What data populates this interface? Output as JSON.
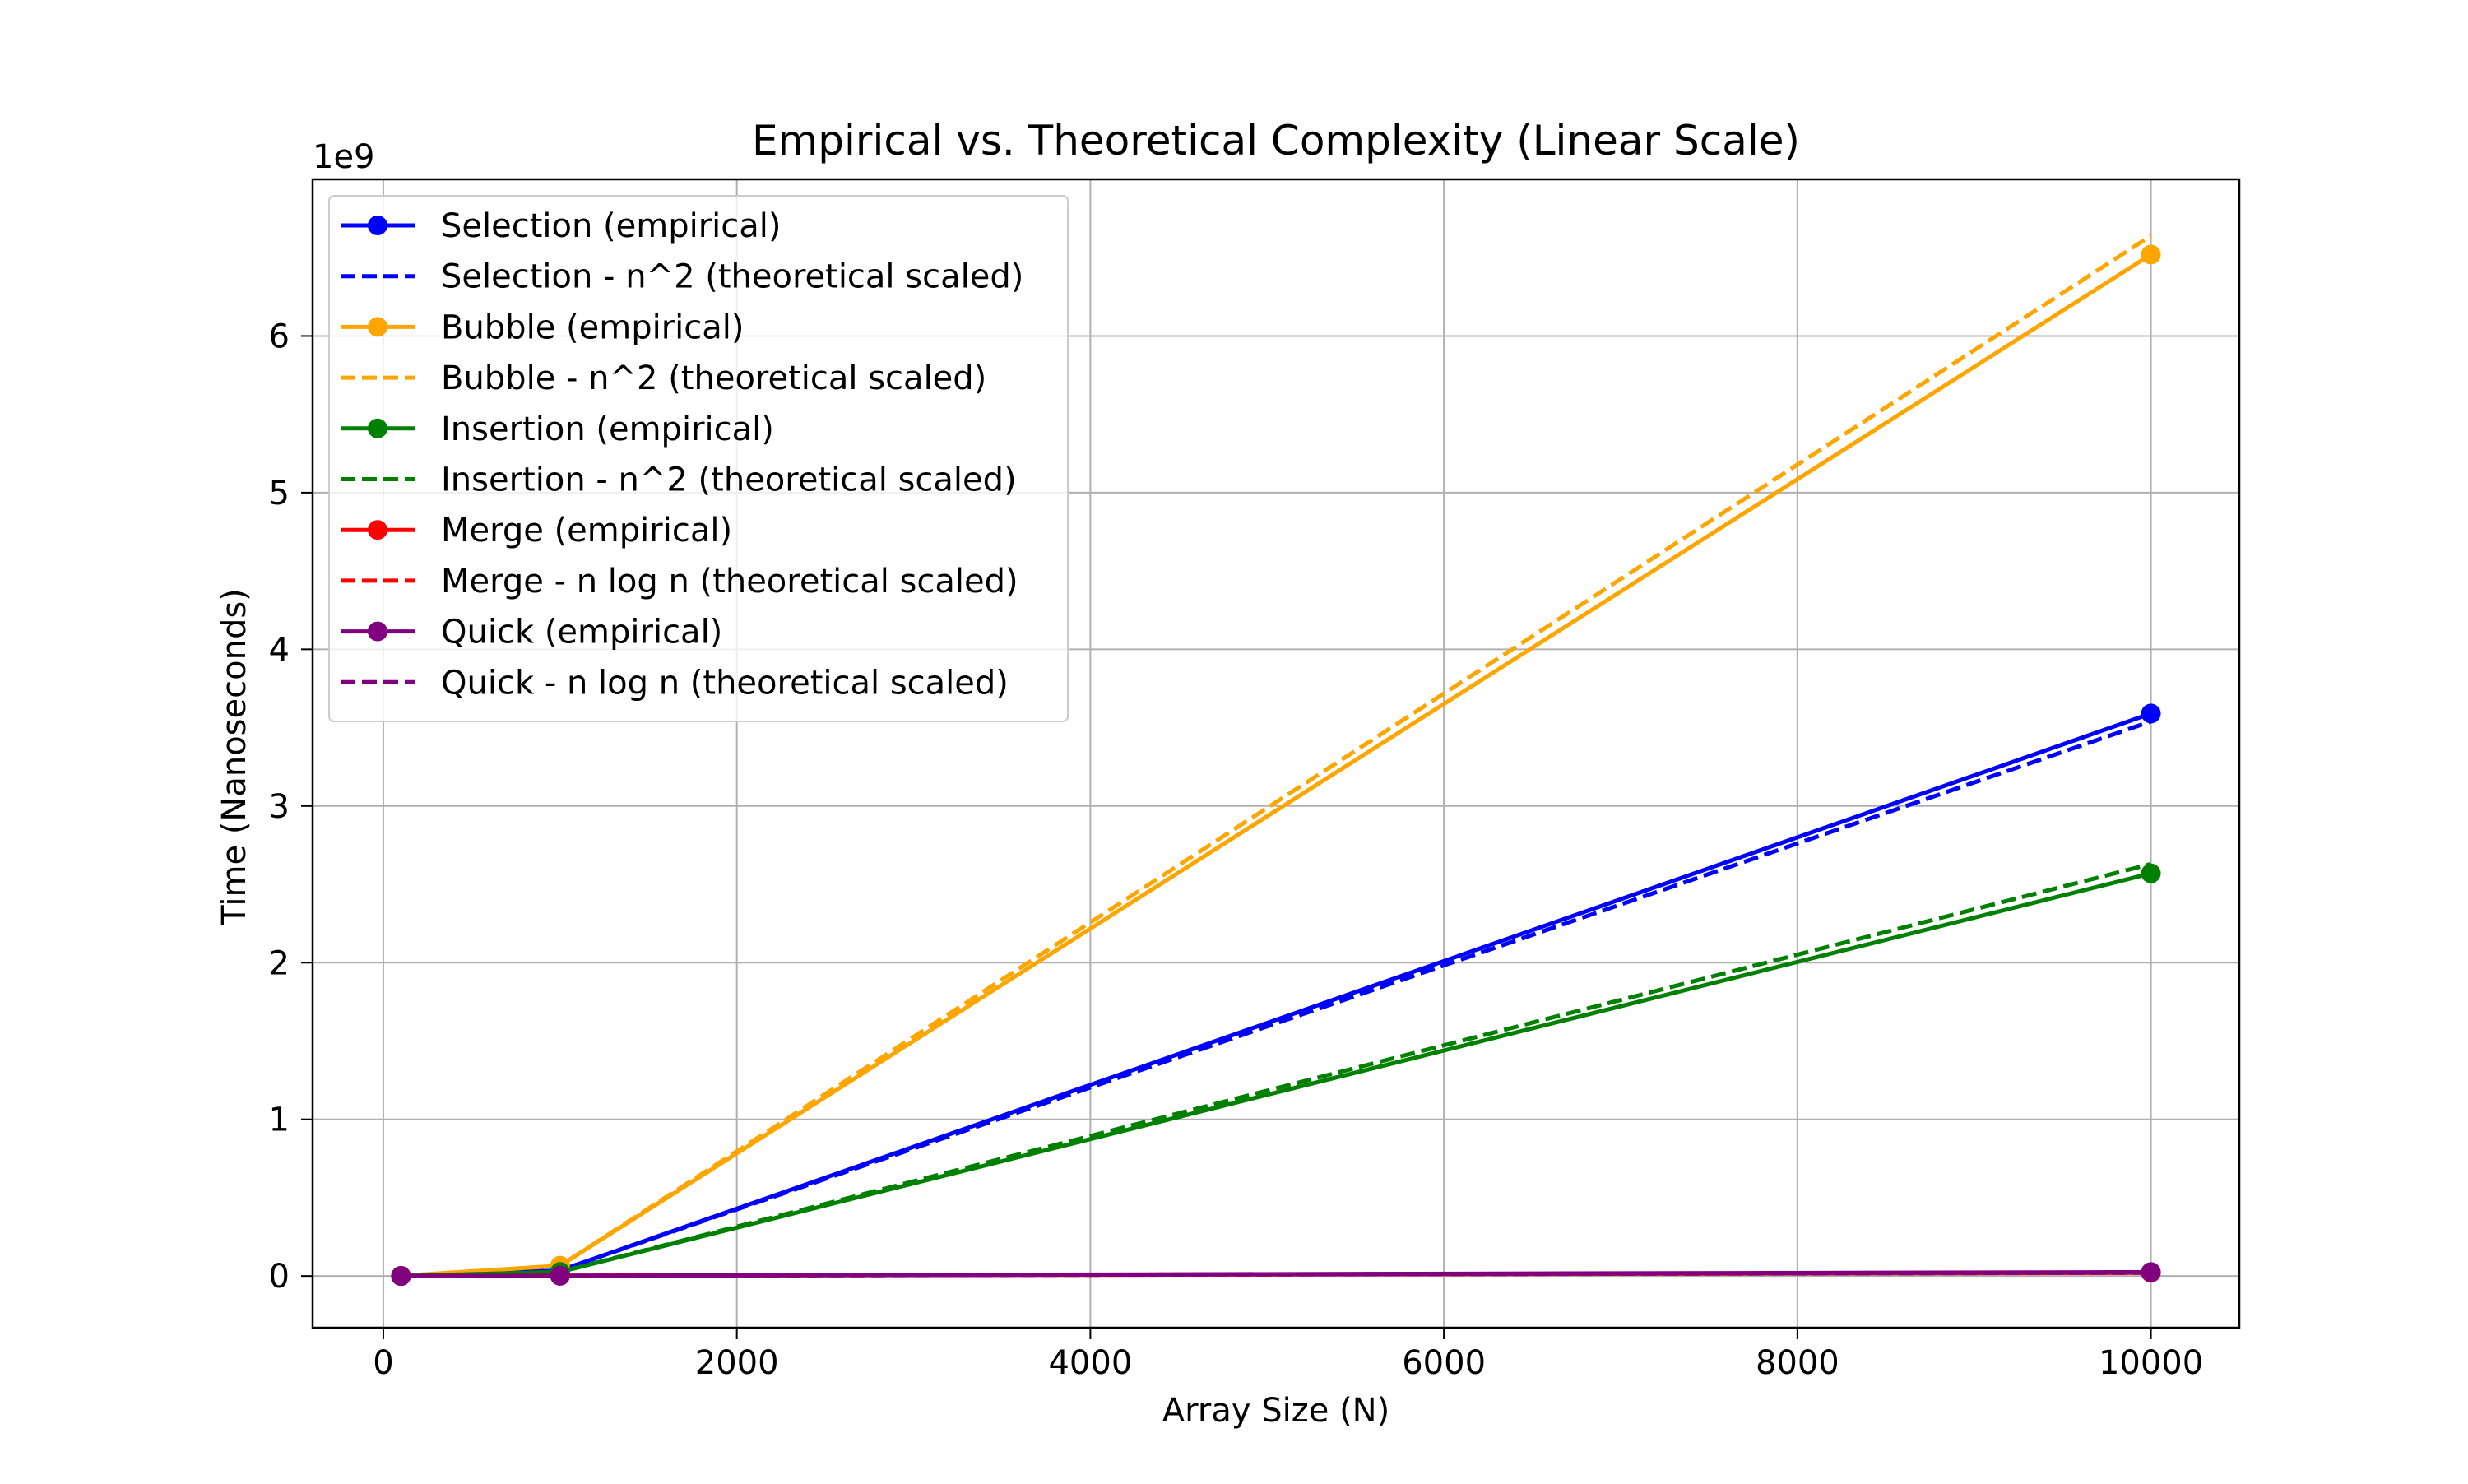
{
  "chart_data": {
    "type": "line",
    "title": "Empirical vs. Theoretical Complexity (Linear Scale)",
    "xlabel": "Array Size (N)",
    "ylabel": "Time (Nanoseconds)",
    "y_multiplier_label": "1e9",
    "xlim": [
      -400,
      10500
    ],
    "ylim": [
      -0.33,
      7.0
    ],
    "y_unit_scale": 1000000000,
    "xticks": [
      0,
      2000,
      4000,
      6000,
      8000,
      10000
    ],
    "xtick_labels": [
      "0",
      "2000",
      "4000",
      "6000",
      "8000",
      "10000"
    ],
    "yticks": [
      0,
      1,
      2,
      3,
      4,
      5,
      6
    ],
    "ytick_labels": [
      "0",
      "1",
      "2",
      "3",
      "4",
      "5",
      "6"
    ],
    "grid": true,
    "legend_position": "top-left",
    "x": [
      100,
      1000,
      10000
    ],
    "series": [
      {
        "name": "Selection (empirical)",
        "color": "#0000ff",
        "style": "solid",
        "markers": true,
        "values": [
          0.0005,
          0.035,
          3.59
        ]
      },
      {
        "name": "Selection - n^2 (theoretical scaled)",
        "color": "#0000ff",
        "style": "dashed",
        "markers": false,
        "values": [
          0.00035,
          0.0354,
          3.54
        ]
      },
      {
        "name": "Bubble (empirical)",
        "color": "#ffa500",
        "style": "solid",
        "markers": true,
        "values": [
          0.0007,
          0.066,
          6.52
        ]
      },
      {
        "name": "Bubble - n^2 (theoretical scaled)",
        "color": "#ffa500",
        "style": "dashed",
        "markers": false,
        "values": [
          0.00066,
          0.066,
          6.64
        ]
      },
      {
        "name": "Insertion (empirical)",
        "color": "#008000",
        "style": "solid",
        "markers": true,
        "values": [
          0.0003,
          0.026,
          2.57
        ]
      },
      {
        "name": "Insertion - n^2 (theoretical scaled)",
        "color": "#008000",
        "style": "dashed",
        "markers": false,
        "values": [
          0.00026,
          0.026,
          2.63
        ]
      },
      {
        "name": "Merge (empirical)",
        "color": "#ff0000",
        "style": "solid",
        "markers": true,
        "values": [
          0.0001,
          0.0016,
          0.021
        ]
      },
      {
        "name": "Merge - n log n (theoretical scaled)",
        "color": "#ff0000",
        "style": "dashed",
        "markers": false,
        "values": [
          0.0001,
          0.0015,
          0.02
        ]
      },
      {
        "name": "Quick (empirical)",
        "color": "#800080",
        "style": "solid",
        "markers": true,
        "values": [
          0.0001,
          0.0014,
          0.025
        ]
      },
      {
        "name": "Quick - n log n (theoretical scaled)",
        "color": "#800080",
        "style": "dashed",
        "markers": false,
        "values": [
          0.0001,
          0.0015,
          0.022
        ]
      }
    ]
  }
}
